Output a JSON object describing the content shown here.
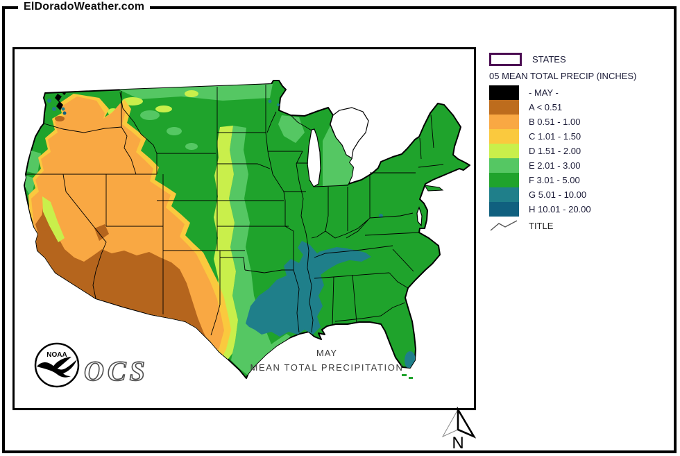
{
  "page": {
    "site_title": "ElDoradoWeather.com"
  },
  "legend": {
    "states_label": "STATES",
    "states_outline_color": "#4b0d52",
    "section_title": "05 MEAN TOTAL PRECIP (INCHES)",
    "items": [
      {
        "label": "- MAY -",
        "color": "#000000"
      },
      {
        "label": "A < 0.51",
        "color": "#bd6c1d"
      },
      {
        "label": "B 0.51 - 1.00",
        "color": "#f9a843"
      },
      {
        "label": "C 1.01 - 1.50",
        "color": "#fac93e"
      },
      {
        "label": "D 1.51 - 2.00",
        "color": "#c9ef4b"
      },
      {
        "label": "E 2.01 - 3.00",
        "color": "#55c763"
      },
      {
        "label": "F 3.01 - 5.00",
        "color": "#1fa32c"
      },
      {
        "label": "G 5.01 - 10.00",
        "color": "#1f7f8a"
      },
      {
        "label": "H 10.01 - 20.00",
        "color": "#10607f"
      }
    ],
    "title_row_label": "TITLE"
  },
  "map": {
    "caption_line1": "MAY",
    "caption_line2": "MEAN TOTAL PRECIPITATION",
    "noaa_logo_text": "NOAA",
    "ocs_text": "OCS"
  },
  "compass": {
    "north_label": "N"
  }
}
